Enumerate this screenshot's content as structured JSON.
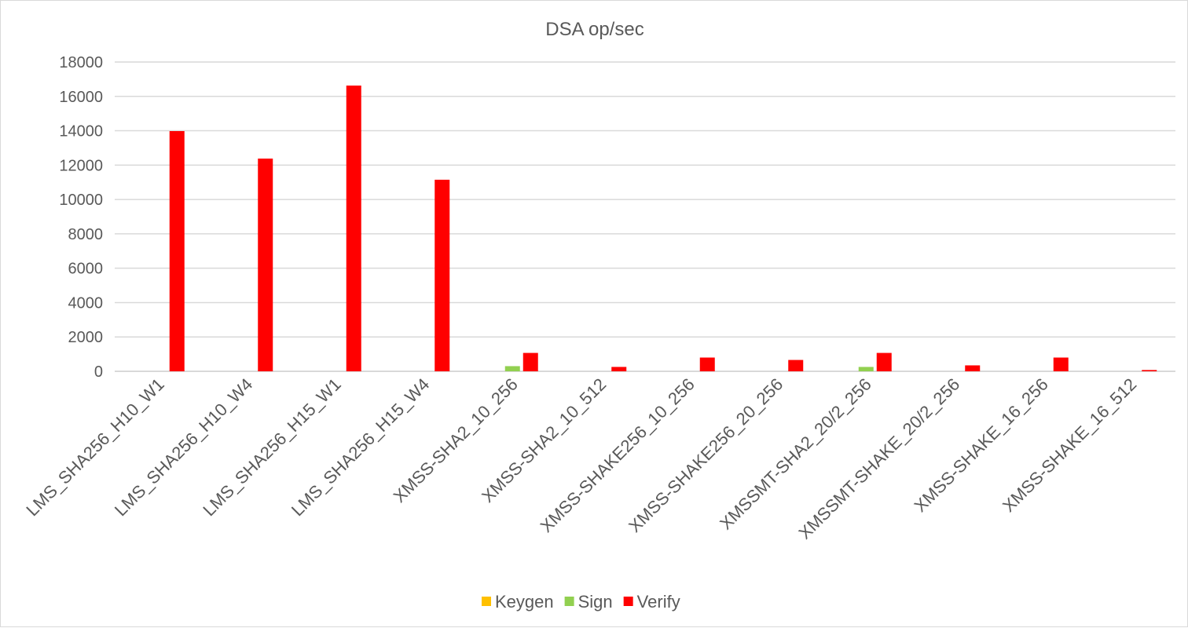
{
  "chart_data": {
    "type": "bar",
    "title": "DSA op/sec",
    "xlabel": "",
    "ylabel": "",
    "ylim": [
      0,
      18000
    ],
    "yticks": [
      "0",
      "2000",
      "4000",
      "6000",
      "8000",
      "10000",
      "12000",
      "14000",
      "16000",
      "18000"
    ],
    "grid": true,
    "legend_position": "bottom",
    "categories": [
      "LMS_SHA256_H10_W1",
      "LMS_SHA256_H10_W4",
      "LMS_SHA256_H15_W1",
      "LMS_SHA256_H15_W4",
      "XMSS-SHA2_10_256",
      "XMSS-SHA2_10_512",
      "XMSS-SHAKE256_10_256",
      "XMSS-SHAKE256_20_256",
      "XMSSMT-SHA2_20/2_256",
      "XMSSMT-SHAKE_20/2_256",
      "XMSS-SHAKE_16_256",
      "XMSS-SHAKE_16_512"
    ],
    "series": [
      {
        "name": "Keygen",
        "color": "#ffc000",
        "values": [
          0,
          0,
          0,
          0,
          0,
          0,
          0,
          0,
          0,
          0,
          0,
          0
        ]
      },
      {
        "name": "Sign",
        "color": "#92d050",
        "values": [
          0,
          0,
          0,
          0,
          300,
          0,
          0,
          0,
          255,
          0,
          0,
          0
        ]
      },
      {
        "name": "Verify",
        "color": "#ff0000",
        "values": [
          13980,
          12380,
          16630,
          11150,
          1070,
          255,
          800,
          660,
          1070,
          345,
          800,
          75
        ]
      }
    ]
  }
}
